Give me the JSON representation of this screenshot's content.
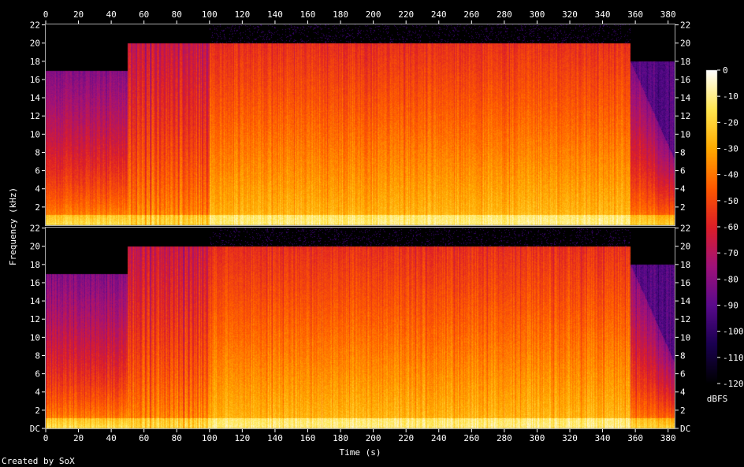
{
  "chart_data": {
    "type": "heatmap",
    "xlabel": "Time (s)",
    "ylabel": "Frequency (kHz)",
    "footer": "Created by SoX",
    "x_ticks": [
      "0",
      "20",
      "40",
      "60",
      "80",
      "100",
      "120",
      "140",
      "160",
      "180",
      "200",
      "220",
      "240",
      "260",
      "280",
      "300",
      "320",
      "340",
      "360",
      "380"
    ],
    "xlim": [
      0,
      384
    ],
    "ylim": [
      0,
      22.05
    ],
    "y_ticks": [
      "2",
      "4",
      "6",
      "8",
      "10",
      "12",
      "14",
      "16",
      "18",
      "20",
      "22"
    ],
    "y_ticks_bottom": [
      "DC",
      "2",
      "4",
      "6",
      "8",
      "10",
      "12",
      "14",
      "16",
      "18",
      "20",
      "22"
    ],
    "channels": [
      {
        "segments": [
          {
            "t0": 0,
            "t1": 50,
            "level": "low",
            "cutoff_khz": 17
          },
          {
            "t0": 50,
            "t1": 100,
            "level": "mid",
            "cutoff_khz": 20
          },
          {
            "t0": 100,
            "t1": 357,
            "level": "high",
            "cutoff_khz": 20
          },
          {
            "t0": 357,
            "t1": 384,
            "level": "fade",
            "cutoff_khz": 18
          }
        ]
      },
      {
        "segments": [
          {
            "t0": 0,
            "t1": 50,
            "level": "low",
            "cutoff_khz": 17
          },
          {
            "t0": 50,
            "t1": 100,
            "level": "mid",
            "cutoff_khz": 20
          },
          {
            "t0": 100,
            "t1": 357,
            "level": "high",
            "cutoff_khz": 20
          },
          {
            "t0": 357,
            "t1": 384,
            "level": "fade",
            "cutoff_khz": 18
          }
        ]
      }
    ],
    "colorbar": {
      "label": "dBFS",
      "range": [
        -120,
        0
      ],
      "ticks": [
        "0",
        "-10",
        "-20",
        "-30",
        "-40",
        "-50",
        "-60",
        "-70",
        "-80",
        "-90",
        "-100",
        "-110",
        "-120"
      ]
    },
    "colormap": [
      "#000000",
      "#1a0050",
      "#5a0a8c",
      "#a0127a",
      "#dc1e28",
      "#ff5a00",
      "#ffaa00",
      "#ffe650",
      "#ffffff"
    ]
  }
}
